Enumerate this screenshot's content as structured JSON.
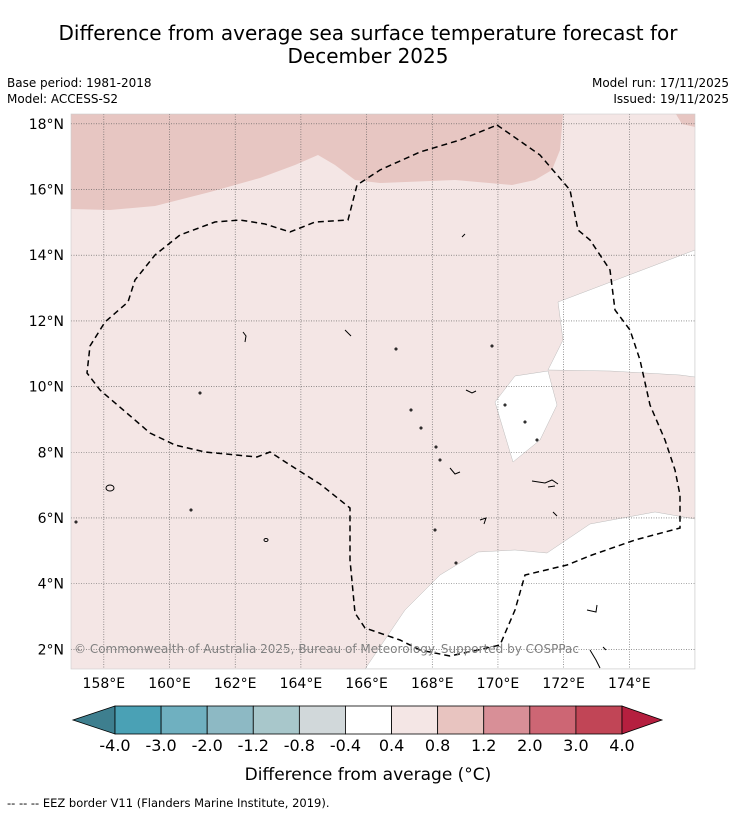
{
  "title": {
    "line1": "Difference from average sea surface temperature forecast for",
    "line2": "December 2025"
  },
  "meta": {
    "base_period": "Base period: 1981-2018",
    "model": "Model: ACCESS-S2",
    "model_run": "Model run: 17/11/2025",
    "issued": "Issued: 19/11/2025"
  },
  "map": {
    "lat_labels": [
      "18°N",
      "16°N",
      "14°N",
      "12°N",
      "10°N",
      "8°N",
      "6°N",
      "4°N",
      "2°N"
    ],
    "lat_values": [
      18,
      16,
      14,
      12,
      10,
      8,
      6,
      4,
      2
    ],
    "lon_labels": [
      "158°E",
      "160°E",
      "162°E",
      "164°E",
      "166°E",
      "168°E",
      "170°E",
      "172°E",
      "174°E"
    ],
    "lon_values": [
      158,
      160,
      162,
      164,
      166,
      168,
      170,
      172,
      174
    ],
    "extent": {
      "lon_min": 157.0,
      "lon_max": 176.0,
      "lat_min": 1.4,
      "lat_max": 18.3
    },
    "regions": {
      "warm_north": "0.8 to 1.2",
      "main_body": "0.4 to 0.8",
      "neutral_patches": "-0.4 to 0.4"
    },
    "credit": "© Commonwealth of Australia 2025, Bureau of Meteorology. Supported by COSPPac"
  },
  "colorbar": {
    "labels": [
      "-4.0",
      "-3.0",
      "-2.0",
      "-1.2",
      "-0.8",
      "-0.4",
      "0.4",
      "0.8",
      "1.2",
      "2.0",
      "3.0",
      "4.0"
    ],
    "colors": [
      "#4aa1b5",
      "#6fb0c0",
      "#8db9c4",
      "#a8c7cb",
      "#d1d8da",
      "#ffffff",
      "#f4e6e5",
      "#e8c4c0",
      "#d88f97",
      "#cd6674",
      "#c14556"
    ],
    "under_color": "#3e7f8f",
    "over_color": "#b51f3f",
    "title": "Difference from average (°C)"
  },
  "footer": "-- -- -- EEZ border V11 (Flanders Marine Institute, 2019).",
  "colors": {
    "main_body": "#f4e6e5",
    "warm_north": "#e7c6c2",
    "neutral": "#ffffff",
    "grid": "#555555"
  }
}
